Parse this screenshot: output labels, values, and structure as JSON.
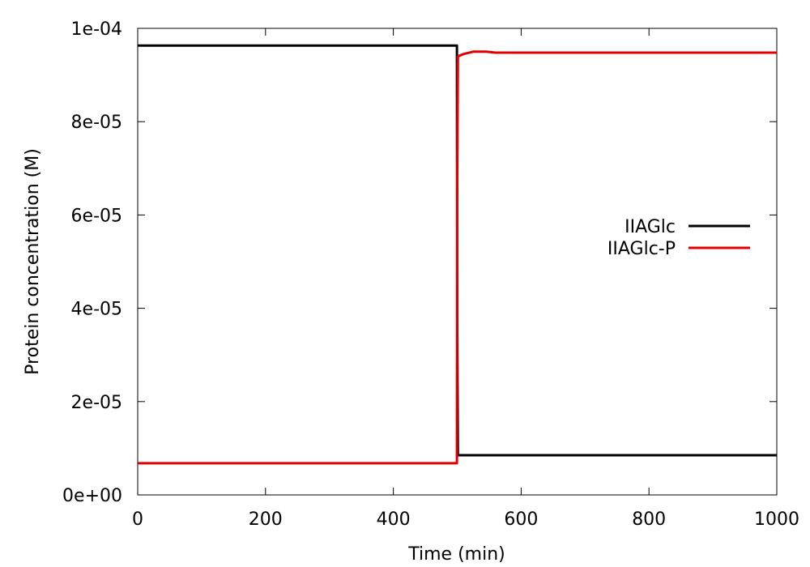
{
  "chart_data": {
    "type": "line",
    "xlabel": "Time (min)",
    "ylabel": "Protein concentration (M)",
    "xlim": [
      0,
      1000
    ],
    "ylim": [
      0,
      0.0001
    ],
    "x_ticks": [
      0,
      200,
      400,
      600,
      800,
      1000
    ],
    "x_tick_labels": [
      "0",
      "200",
      "400",
      "600",
      "800",
      "1000"
    ],
    "y_ticks": [
      0,
      2e-05,
      4e-05,
      6e-05,
      8e-05,
      0.0001
    ],
    "y_tick_labels": [
      "0e+00",
      "2e-05",
      "4e-05",
      "6e-05",
      "8e-05",
      "1e-04"
    ],
    "grid": false,
    "legend_position": "right-middle",
    "series": [
      {
        "name": "IIAGlc",
        "color": "#000000",
        "points": [
          [
            0,
            9.63e-05
          ],
          [
            499.5,
            9.63e-05
          ],
          [
            500,
            3.5e-05
          ],
          [
            501,
            8.5e-06
          ],
          [
            1000,
            8.5e-06
          ]
        ]
      },
      {
        "name": "IIAGlc-P",
        "color": "#e00000",
        "points": [
          [
            0,
            6.8e-06
          ],
          [
            499.5,
            6.8e-06
          ],
          [
            500,
            6.8e-05
          ],
          [
            501,
            9.4e-05
          ],
          [
            510,
            9.45e-05
          ],
          [
            525,
            9.5e-05
          ],
          [
            545,
            9.5e-05
          ],
          [
            560,
            9.48e-05
          ],
          [
            1000,
            9.48e-05
          ]
        ]
      }
    ]
  }
}
